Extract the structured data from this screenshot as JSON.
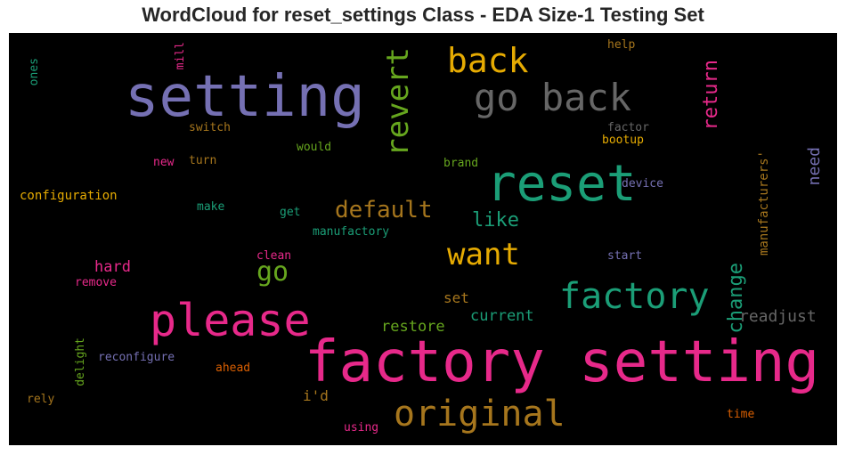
{
  "title": "WordCloud for reset_settings Class - EDA Size-1 Testing Set",
  "words": [
    {
      "text": "factory setting",
      "color": "#e7298a",
      "orientation": "horizontal"
    },
    {
      "text": "setting",
      "color": "#7570b3",
      "orientation": "horizontal"
    },
    {
      "text": "reset",
      "color": "#1b9e77",
      "orientation": "horizontal"
    },
    {
      "text": "please",
      "color": "#e7298a",
      "orientation": "horizontal"
    },
    {
      "text": "go back",
      "color": "#666666",
      "orientation": "horizontal"
    },
    {
      "text": "factory",
      "color": "#1b9e77",
      "orientation": "horizontal"
    },
    {
      "text": "original",
      "color": "#a6761d",
      "orientation": "horizontal"
    },
    {
      "text": "back",
      "color": "#e6ab02",
      "orientation": "horizontal"
    },
    {
      "text": "revert",
      "color": "#66a61e",
      "orientation": "vertical"
    },
    {
      "text": "want",
      "color": "#e6ab02",
      "orientation": "horizontal"
    },
    {
      "text": "default",
      "color": "#a6761d",
      "orientation": "horizontal"
    },
    {
      "text": "go",
      "color": "#66a61e",
      "orientation": "horizontal"
    },
    {
      "text": "return",
      "color": "#e7298a",
      "orientation": "vertical"
    },
    {
      "text": "change",
      "color": "#1b9e77",
      "orientation": "vertical"
    },
    {
      "text": "like",
      "color": "#1b9e77",
      "orientation": "horizontal"
    },
    {
      "text": "need",
      "color": "#7570b3",
      "orientation": "vertical"
    },
    {
      "text": "hard",
      "color": "#e7298a",
      "orientation": "horizontal"
    },
    {
      "text": "readjust",
      "color": "#666666",
      "orientation": "horizontal"
    },
    {
      "text": "restore",
      "color": "#66a61e",
      "orientation": "horizontal"
    },
    {
      "text": "current",
      "color": "#1b9e77",
      "orientation": "horizontal"
    },
    {
      "text": "set",
      "color": "#a6761d",
      "orientation": "horizontal"
    },
    {
      "text": "i'd",
      "color": "#a6761d",
      "orientation": "horizontal"
    },
    {
      "text": "manufacturers'",
      "color": "#a6761d",
      "orientation": "vertical"
    },
    {
      "text": "configuration",
      "color": "#e6ab02",
      "orientation": "horizontal"
    },
    {
      "text": "switch",
      "color": "#a6761d",
      "orientation": "horizontal"
    },
    {
      "text": "would",
      "color": "#66a61e",
      "orientation": "horizontal"
    },
    {
      "text": "factor",
      "color": "#666666",
      "orientation": "horizontal"
    },
    {
      "text": "bootup",
      "color": "#e6ab02",
      "orientation": "horizontal"
    },
    {
      "text": "help",
      "color": "#a6761d",
      "orientation": "horizontal"
    },
    {
      "text": "new",
      "color": "#e7298a",
      "orientation": "horizontal"
    },
    {
      "text": "turn",
      "color": "#a6761d",
      "orientation": "horizontal"
    },
    {
      "text": "brand",
      "color": "#66a61e",
      "orientation": "horizontal"
    },
    {
      "text": "device",
      "color": "#7570b3",
      "orientation": "horizontal"
    },
    {
      "text": "make",
      "color": "#1b9e77",
      "orientation": "horizontal"
    },
    {
      "text": "get",
      "color": "#1b9e77",
      "orientation": "horizontal"
    },
    {
      "text": "manufactory",
      "color": "#1b9e77",
      "orientation": "horizontal"
    },
    {
      "text": "clean",
      "color": "#e7298a",
      "orientation": "horizontal"
    },
    {
      "text": "start",
      "color": "#7570b3",
      "orientation": "horizontal"
    },
    {
      "text": "remove",
      "color": "#e7298a",
      "orientation": "horizontal"
    },
    {
      "text": "reconfigure",
      "color": "#7570b3",
      "orientation": "horizontal"
    },
    {
      "text": "ahead",
      "color": "#d95f02",
      "orientation": "horizontal"
    },
    {
      "text": "delight",
      "color": "#66a61e",
      "orientation": "vertical"
    },
    {
      "text": "rely",
      "color": "#a6761d",
      "orientation": "horizontal"
    },
    {
      "text": "using",
      "color": "#e7298a",
      "orientation": "horizontal"
    },
    {
      "text": "time",
      "color": "#d95f02",
      "orientation": "horizontal"
    },
    {
      "text": "ones",
      "color": "#1b9e77",
      "orientation": "vertical"
    },
    {
      "text": "mill",
      "color": "#e7298a",
      "orientation": "vertical"
    }
  ]
}
